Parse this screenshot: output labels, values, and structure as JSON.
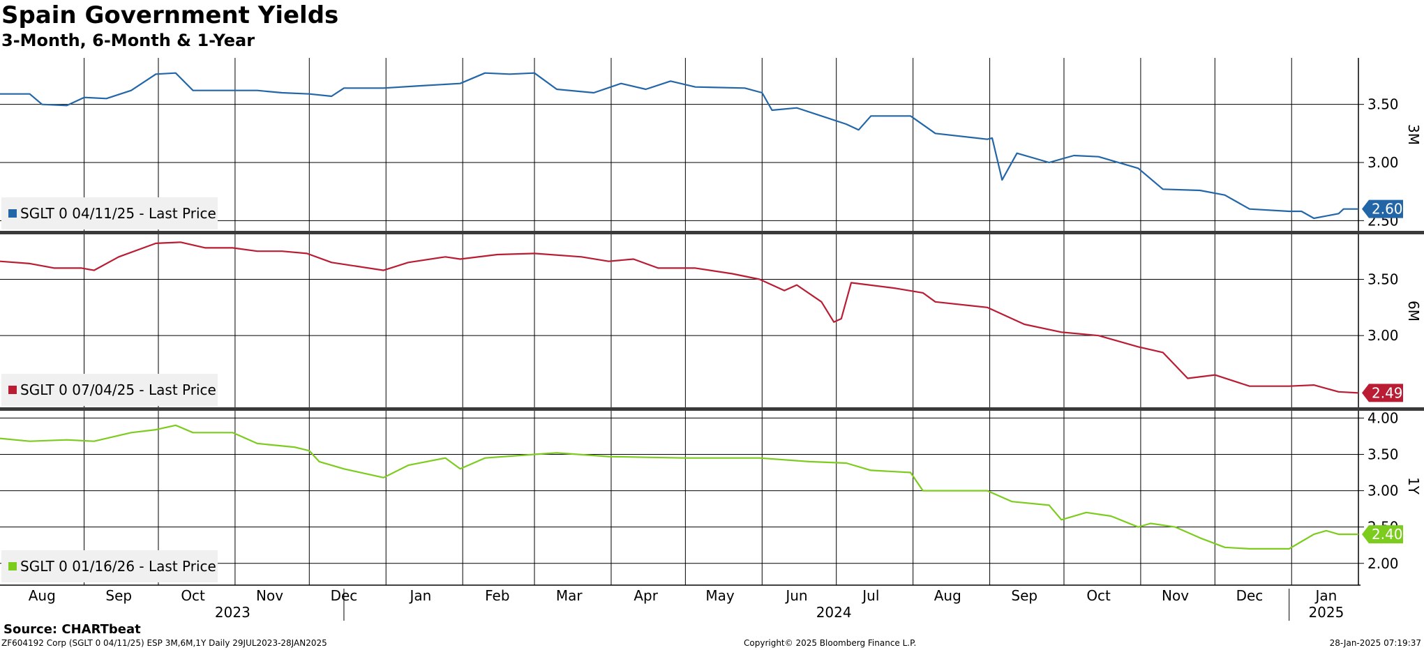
{
  "header": {
    "title": "Spain Government Yields",
    "subtitle": "3-Month, 6-Month & 1-Year"
  },
  "footer": {
    "source": "Source: CHARTbeat",
    "left": "ZF604192 Corp (SGLT 0 04/11/25) ESP 3M,6M,1Y  Daily 29JUL2023-28JAN2025",
    "center": "Copyright© 2025 Bloomberg Finance L.P.",
    "right": "28-Jan-2025 07:19:37"
  },
  "chart_data": {
    "type": "line",
    "x_range": [
      "2023-07-29",
      "2025-01-28"
    ],
    "month_labels": [
      "Aug",
      "Sep",
      "Oct",
      "Nov",
      "Dec",
      "Jan",
      "Feb",
      "Mar",
      "Apr",
      "May",
      "Jun",
      "Jul",
      "Aug",
      "Sep",
      "Oct",
      "Nov",
      "Dec",
      "Jan"
    ],
    "year_labels": [
      "2023",
      "2024",
      "2025"
    ],
    "grid": true,
    "panels": [
      {
        "label": "3M",
        "color": "#2366a8",
        "legend": "SGLT 0 04/11/25 - Last Price",
        "last_value": "2.60",
        "ylim": [
          2.4,
          3.9
        ],
        "yticks": [
          "3.50",
          "3.00",
          "2.50"
        ],
        "series": [
          {
            "x": "2023-07-29",
            "y": 3.59
          },
          {
            "x": "2023-08-10",
            "y": 3.59
          },
          {
            "x": "2023-08-15",
            "y": 3.5
          },
          {
            "x": "2023-08-25",
            "y": 3.49
          },
          {
            "x": "2023-09-01",
            "y": 3.56
          },
          {
            "x": "2023-09-10",
            "y": 3.55
          },
          {
            "x": "2023-09-20",
            "y": 3.62
          },
          {
            "x": "2023-09-30",
            "y": 3.76
          },
          {
            "x": "2023-10-08",
            "y": 3.77
          },
          {
            "x": "2023-10-15",
            "y": 3.62
          },
          {
            "x": "2023-10-31",
            "y": 3.62
          },
          {
            "x": "2023-11-10",
            "y": 3.62
          },
          {
            "x": "2023-11-20",
            "y": 3.6
          },
          {
            "x": "2023-12-01",
            "y": 3.59
          },
          {
            "x": "2023-12-10",
            "y": 3.57
          },
          {
            "x": "2023-12-15",
            "y": 3.64
          },
          {
            "x": "2023-12-31",
            "y": 3.64
          },
          {
            "x": "2024-01-15",
            "y": 3.66
          },
          {
            "x": "2024-01-31",
            "y": 3.68
          },
          {
            "x": "2024-02-10",
            "y": 3.77
          },
          {
            "x": "2024-02-20",
            "y": 3.76
          },
          {
            "x": "2024-03-01",
            "y": 3.77
          },
          {
            "x": "2024-03-10",
            "y": 3.63
          },
          {
            "x": "2024-03-25",
            "y": 3.6
          },
          {
            "x": "2024-04-05",
            "y": 3.68
          },
          {
            "x": "2024-04-15",
            "y": 3.63
          },
          {
            "x": "2024-04-25",
            "y": 3.7
          },
          {
            "x": "2024-05-05",
            "y": 3.65
          },
          {
            "x": "2024-05-25",
            "y": 3.64
          },
          {
            "x": "2024-06-01",
            "y": 3.6
          },
          {
            "x": "2024-06-05",
            "y": 3.45
          },
          {
            "x": "2024-06-15",
            "y": 3.47
          },
          {
            "x": "2024-06-25",
            "y": 3.4
          },
          {
            "x": "2024-07-05",
            "y": 3.33
          },
          {
            "x": "2024-07-10",
            "y": 3.28
          },
          {
            "x": "2024-07-15",
            "y": 3.4
          },
          {
            "x": "2024-07-31",
            "y": 3.4
          },
          {
            "x": "2024-08-10",
            "y": 3.25
          },
          {
            "x": "2024-08-31",
            "y": 3.2
          },
          {
            "x": "2024-09-02",
            "y": 3.21
          },
          {
            "x": "2024-09-06",
            "y": 2.85
          },
          {
            "x": "2024-09-12",
            "y": 3.08
          },
          {
            "x": "2024-09-25",
            "y": 3.0
          },
          {
            "x": "2024-10-05",
            "y": 3.06
          },
          {
            "x": "2024-10-15",
            "y": 3.05
          },
          {
            "x": "2024-10-31",
            "y": 2.95
          },
          {
            "x": "2024-11-10",
            "y": 2.77
          },
          {
            "x": "2024-11-25",
            "y": 2.76
          },
          {
            "x": "2024-12-05",
            "y": 2.72
          },
          {
            "x": "2024-12-15",
            "y": 2.6
          },
          {
            "x": "2024-12-31",
            "y": 2.58
          },
          {
            "x": "2025-01-05",
            "y": 2.58
          },
          {
            "x": "2025-01-10",
            "y": 2.52
          },
          {
            "x": "2025-01-20",
            "y": 2.56
          },
          {
            "x": "2025-01-22",
            "y": 2.6
          },
          {
            "x": "2025-01-28",
            "y": 2.6
          }
        ]
      },
      {
        "label": "6M",
        "color": "#b91c33",
        "legend": "SGLT 0 07/04/25 - Last Price",
        "last_value": "2.49",
        "ylim": [
          2.35,
          3.9
        ],
        "yticks": [
          "3.50",
          "3.00"
        ],
        "series": [
          {
            "x": "2023-07-29",
            "y": 3.66
          },
          {
            "x": "2023-08-10",
            "y": 3.64
          },
          {
            "x": "2023-08-20",
            "y": 3.6
          },
          {
            "x": "2023-08-31",
            "y": 3.6
          },
          {
            "x": "2023-09-05",
            "y": 3.58
          },
          {
            "x": "2023-09-15",
            "y": 3.7
          },
          {
            "x": "2023-09-30",
            "y": 3.82
          },
          {
            "x": "2023-10-10",
            "y": 3.83
          },
          {
            "x": "2023-10-20",
            "y": 3.78
          },
          {
            "x": "2023-10-31",
            "y": 3.78
          },
          {
            "x": "2023-11-10",
            "y": 3.75
          },
          {
            "x": "2023-11-20",
            "y": 3.75
          },
          {
            "x": "2023-11-30",
            "y": 3.73
          },
          {
            "x": "2023-12-10",
            "y": 3.65
          },
          {
            "x": "2023-12-31",
            "y": 3.58
          },
          {
            "x": "2024-01-10",
            "y": 3.65
          },
          {
            "x": "2024-01-25",
            "y": 3.7
          },
          {
            "x": "2024-01-31",
            "y": 3.68
          },
          {
            "x": "2024-02-15",
            "y": 3.72
          },
          {
            "x": "2024-03-01",
            "y": 3.73
          },
          {
            "x": "2024-03-20",
            "y": 3.7
          },
          {
            "x": "2024-03-31",
            "y": 3.66
          },
          {
            "x": "2024-04-10",
            "y": 3.68
          },
          {
            "x": "2024-04-20",
            "y": 3.6
          },
          {
            "x": "2024-05-05",
            "y": 3.6
          },
          {
            "x": "2024-05-20",
            "y": 3.55
          },
          {
            "x": "2024-05-31",
            "y": 3.5
          },
          {
            "x": "2024-06-10",
            "y": 3.4
          },
          {
            "x": "2024-06-15",
            "y": 3.45
          },
          {
            "x": "2024-06-25",
            "y": 3.3
          },
          {
            "x": "2024-06-30",
            "y": 3.12
          },
          {
            "x": "2024-07-03",
            "y": 3.15
          },
          {
            "x": "2024-07-07",
            "y": 3.47
          },
          {
            "x": "2024-07-25",
            "y": 3.42
          },
          {
            "x": "2024-08-05",
            "y": 3.38
          },
          {
            "x": "2024-08-10",
            "y": 3.3
          },
          {
            "x": "2024-08-31",
            "y": 3.25
          },
          {
            "x": "2024-09-15",
            "y": 3.1
          },
          {
            "x": "2024-09-30",
            "y": 3.03
          },
          {
            "x": "2024-10-15",
            "y": 3.0
          },
          {
            "x": "2024-10-31",
            "y": 2.9
          },
          {
            "x": "2024-11-10",
            "y": 2.85
          },
          {
            "x": "2024-11-20",
            "y": 2.62
          },
          {
            "x": "2024-12-01",
            "y": 2.65
          },
          {
            "x": "2024-12-15",
            "y": 2.55
          },
          {
            "x": "2024-12-31",
            "y": 2.55
          },
          {
            "x": "2025-01-10",
            "y": 2.56
          },
          {
            "x": "2025-01-20",
            "y": 2.5
          },
          {
            "x": "2025-01-28",
            "y": 2.49
          }
        ]
      },
      {
        "label": "1Y",
        "color": "#7ccc1e",
        "legend": "SGLT 0 01/16/26 - Last Price",
        "last_value": "2.40",
        "ylim": [
          1.7,
          4.1
        ],
        "yticks": [
          "4.00",
          "3.50",
          "3.00",
          "2.50",
          "2.00"
        ],
        "series": [
          {
            "x": "2023-07-29",
            "y": 3.72
          },
          {
            "x": "2023-08-10",
            "y": 3.68
          },
          {
            "x": "2023-08-25",
            "y": 3.7
          },
          {
            "x": "2023-09-05",
            "y": 3.68
          },
          {
            "x": "2023-09-20",
            "y": 3.8
          },
          {
            "x": "2023-09-30",
            "y": 3.84
          },
          {
            "x": "2023-10-08",
            "y": 3.9
          },
          {
            "x": "2023-10-15",
            "y": 3.8
          },
          {
            "x": "2023-10-31",
            "y": 3.8
          },
          {
            "x": "2023-11-10",
            "y": 3.65
          },
          {
            "x": "2023-11-25",
            "y": 3.6
          },
          {
            "x": "2023-12-01",
            "y": 3.55
          },
          {
            "x": "2023-12-05",
            "y": 3.4
          },
          {
            "x": "2023-12-15",
            "y": 3.3
          },
          {
            "x": "2023-12-31",
            "y": 3.18
          },
          {
            "x": "2024-01-10",
            "y": 3.35
          },
          {
            "x": "2024-01-25",
            "y": 3.45
          },
          {
            "x": "2024-01-31",
            "y": 3.3
          },
          {
            "x": "2024-02-10",
            "y": 3.45
          },
          {
            "x": "2024-03-01",
            "y": 3.5
          },
          {
            "x": "2024-03-10",
            "y": 3.52
          },
          {
            "x": "2024-03-31",
            "y": 3.47
          },
          {
            "x": "2024-04-15",
            "y": 3.46
          },
          {
            "x": "2024-05-01",
            "y": 3.45
          },
          {
            "x": "2024-05-31",
            "y": 3.45
          },
          {
            "x": "2024-06-20",
            "y": 3.4
          },
          {
            "x": "2024-07-05",
            "y": 3.38
          },
          {
            "x": "2024-07-15",
            "y": 3.28
          },
          {
            "x": "2024-07-31",
            "y": 3.25
          },
          {
            "x": "2024-08-05",
            "y": 3.0
          },
          {
            "x": "2024-08-31",
            "y": 3.0
          },
          {
            "x": "2024-09-10",
            "y": 2.85
          },
          {
            "x": "2024-09-25",
            "y": 2.8
          },
          {
            "x": "2024-09-30",
            "y": 2.6
          },
          {
            "x": "2024-10-10",
            "y": 2.7
          },
          {
            "x": "2024-10-20",
            "y": 2.65
          },
          {
            "x": "2024-10-31",
            "y": 2.5
          },
          {
            "x": "2024-11-05",
            "y": 2.55
          },
          {
            "x": "2024-11-15",
            "y": 2.5
          },
          {
            "x": "2024-11-25",
            "y": 2.35
          },
          {
            "x": "2024-12-05",
            "y": 2.22
          },
          {
            "x": "2024-12-15",
            "y": 2.2
          },
          {
            "x": "2024-12-31",
            "y": 2.2
          },
          {
            "x": "2025-01-05",
            "y": 2.3
          },
          {
            "x": "2025-01-10",
            "y": 2.4
          },
          {
            "x": "2025-01-15",
            "y": 2.45
          },
          {
            "x": "2025-01-20",
            "y": 2.4
          },
          {
            "x": "2025-01-28",
            "y": 2.4
          }
        ]
      }
    ]
  }
}
